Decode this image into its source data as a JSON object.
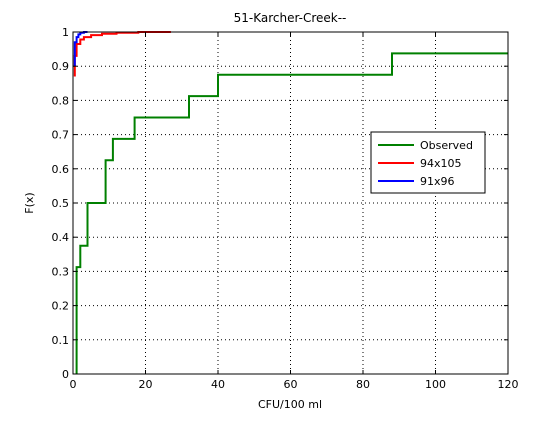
{
  "chart_data": {
    "type": "line",
    "title": "51-Karcher-Creek--",
    "xlabel": "CFU/100 ml",
    "ylabel": "F(x)",
    "xlim": [
      0,
      120
    ],
    "ylim": [
      0,
      1
    ],
    "xticks": [
      0,
      20,
      40,
      60,
      80,
      100,
      120
    ],
    "yticks": [
      0,
      0.1,
      0.2,
      0.3,
      0.4,
      0.5,
      0.6,
      0.7,
      0.8,
      0.9,
      1
    ],
    "xtick_labels": [
      "0",
      "20",
      "40",
      "60",
      "80",
      "100",
      "120"
    ],
    "ytick_labels": [
      "0",
      "0.1",
      "0.2",
      "0.3",
      "0.4",
      "0.5",
      "0.6",
      "0.7",
      "0.8",
      "0.9",
      "1"
    ],
    "grid": true,
    "legend_position": "right",
    "step": true,
    "series": [
      {
        "name": "Observed",
        "color": "#008000",
        "x": [
          1,
          1,
          2,
          2,
          4,
          4,
          9,
          9,
          11,
          11,
          17,
          17,
          32,
          32,
          40,
          40,
          88,
          88,
          120
        ],
        "y": [
          0,
          0.3125,
          0.3125,
          0.375,
          0.375,
          0.5,
          0.5,
          0.625,
          0.625,
          0.6875,
          0.6875,
          0.75,
          0.75,
          0.8125,
          0.8125,
          0.875,
          0.875,
          0.9375,
          0.9375
        ]
      },
      {
        "name": "94x105",
        "color": "#ff0000",
        "x": [
          0.5,
          0.5,
          1,
          1,
          2,
          2,
          3,
          3,
          5,
          5,
          8,
          8,
          12,
          12,
          18,
          18,
          27
        ],
        "y": [
          0.87,
          0.93,
          0.93,
          0.965,
          0.965,
          0.978,
          0.978,
          0.985,
          0.985,
          0.991,
          0.991,
          0.995,
          0.995,
          0.998,
          0.998,
          1.0,
          1.0
        ]
      },
      {
        "name": "91x96",
        "color": "#0000ff",
        "x": [
          0.5,
          0.5,
          1,
          1,
          1.5,
          1.5,
          2,
          2,
          3,
          3,
          4
        ],
        "y": [
          0.9,
          0.97,
          0.97,
          0.985,
          0.985,
          0.993,
          0.993,
          0.998,
          0.998,
          1.0,
          1.0
        ]
      }
    ]
  }
}
